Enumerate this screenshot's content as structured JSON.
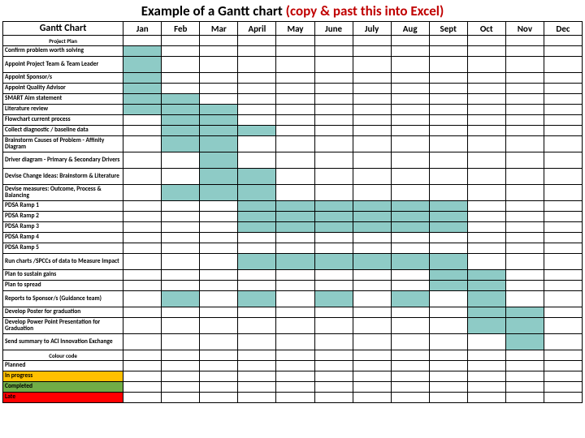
{
  "title_black": "Example of a Gantt chart ",
  "title_red": "(copy & past this into Excel)",
  "header_task": "Gantt Chart",
  "months": [
    "Jan",
    "Feb",
    "Mar",
    "April",
    "May",
    "June",
    "July",
    "Aug",
    "Sept",
    "Oct",
    "Nov",
    "Dec"
  ],
  "section_label": "Project Plan",
  "fill_color": "#8ecbc6",
  "tasks": [
    {
      "label": "Confirm problem worth solving",
      "fills": [
        0
      ],
      "tall": false
    },
    {
      "label": "Appoint Project Team & Team Leader",
      "fills": [
        0
      ],
      "tall": true
    },
    {
      "label": "Appoint Sponsor/s",
      "fills": [
        0
      ],
      "tall": false
    },
    {
      "label": "Appoint Quality Advisor",
      "fills": [
        0
      ],
      "tall": false
    },
    {
      "label": "SMART Aim statement",
      "fills": [
        0,
        1
      ],
      "tall": false
    },
    {
      "label": "Literature review",
      "fills": [
        0,
        1,
        2
      ],
      "tall": false
    },
    {
      "label": "Flowchart current process",
      "fills": [
        1,
        2
      ],
      "tall": false
    },
    {
      "label": "Collect diagnostic / baseline data",
      "fills": [
        1,
        2,
        3
      ],
      "tall": false
    },
    {
      "label": "Brainstorm Causes of Problem - Affinity Diagram",
      "fills": [
        1,
        2
      ],
      "tall": true
    },
    {
      "label": "Driver diagram - Primary & Secondary Drivers",
      "fills": [
        2
      ],
      "tall": true
    },
    {
      "label": "Devise Change Ideas: Brainstorm & Literature",
      "fills": [
        2,
        3
      ],
      "tall": true
    },
    {
      "label": "Devise measures: Outcome, Process & Balancing",
      "fills": [
        1,
        2,
        3
      ],
      "tall": true
    },
    {
      "label": "PDSA Ramp 1",
      "fills": [
        3,
        4,
        5,
        6,
        7,
        8
      ],
      "tall": false
    },
    {
      "label": "PDSA Ramp 2",
      "fills": [
        3,
        4,
        5,
        6,
        7,
        8
      ],
      "tall": false
    },
    {
      "label": "PDSA Ramp 3",
      "fills": [
        3,
        4,
        5,
        6,
        7,
        8
      ],
      "tall": false
    },
    {
      "label": "PDSA Ramp 4",
      "fills": [],
      "tall": false
    },
    {
      "label": "PDSA Ramp 5",
      "fills": [],
      "tall": false
    },
    {
      "label": "Run charts /SPCCs of data to Measure Impact",
      "fills": [
        3,
        4,
        5,
        6,
        7,
        8
      ],
      "tall": true
    },
    {
      "label": "Plan to sustain gains",
      "fills": [
        8,
        9
      ],
      "tall": false
    },
    {
      "label": "Plan to spread",
      "fills": [
        8,
        9
      ],
      "tall": false
    },
    {
      "label": "Reports to Sponsor/s (Guidance team)",
      "fills": [
        1,
        3,
        5,
        7,
        9
      ],
      "tall": true
    },
    {
      "label": "Develop Poster for graduation",
      "fills": [
        9,
        10
      ],
      "tall": false
    },
    {
      "label": "Develop Power Point Presentation for Graduation",
      "fills": [
        9,
        10
      ],
      "tall": true
    },
    {
      "label": "Send summary to ACI Innovation Exchange",
      "fills": [
        10
      ],
      "tall": true
    }
  ],
  "legend_title": "Colour code",
  "legend": [
    {
      "label": "Planned",
      "color": "#ffffff"
    },
    {
      "label": "In progress",
      "color": "#ffc000"
    },
    {
      "label": "Completed",
      "color": "#70ad47"
    },
    {
      "label": "Late",
      "color": "#ff0000"
    }
  ]
}
